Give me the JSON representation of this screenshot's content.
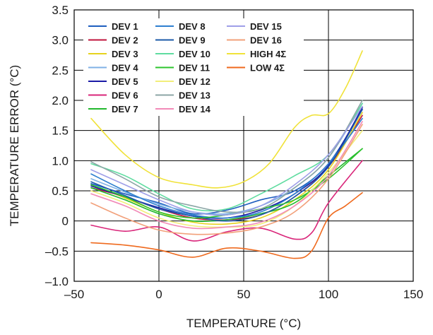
{
  "chart_data": {
    "type": "line",
    "title": "",
    "xlabel": "TEMPERATURE (°C)",
    "ylabel": "TEMPERATURE ERROR (°C)",
    "xlim": [
      -50,
      150
    ],
    "ylim": [
      -1.0,
      3.5
    ],
    "xticks": [
      -50,
      0,
      50,
      100,
      150
    ],
    "yticks": [
      -1.0,
      -0.5,
      0,
      0.5,
      1.0,
      1.5,
      2.0,
      2.5,
      3.0,
      3.5
    ],
    "xtick_labels": [
      "–50",
      "0",
      "50",
      "100",
      "150"
    ],
    "ytick_labels": [
      "–1.0",
      "–0.5",
      "0",
      "0.5",
      "1.0",
      "1.5",
      "2.0",
      "2.5",
      "3.0",
      "3.5"
    ],
    "grid": true,
    "legend": "top-left",
    "legend_columns": 3,
    "series": [
      {
        "name": "DEV 1",
        "color": "#1f5fbf",
        "x": [
          -40,
          -20,
          0,
          20,
          40,
          60,
          80,
          100,
          120
        ],
        "y": [
          0.62,
          0.45,
          0.3,
          0.12,
          0.18,
          0.35,
          0.5,
          0.95,
          1.85
        ]
      },
      {
        "name": "DEV 2",
        "color": "#c0143c",
        "x": [
          -40,
          -20,
          0,
          20,
          40,
          60,
          80,
          100,
          120
        ],
        "y": [
          0.55,
          0.4,
          0.2,
          0.05,
          0.02,
          0.1,
          0.4,
          0.9,
          1.75
        ]
      },
      {
        "name": "DEV 3",
        "color": "#e6d21e",
        "x": [
          -40,
          -20,
          0,
          20,
          40,
          60,
          80,
          100,
          120
        ],
        "y": [
          0.6,
          0.38,
          0.15,
          -0.02,
          -0.05,
          0.05,
          0.35,
          0.85,
          1.8
        ]
      },
      {
        "name": "DEV 4",
        "color": "#7fb2e5",
        "x": [
          -40,
          -20,
          0,
          20,
          40,
          60,
          80,
          100,
          120
        ],
        "y": [
          0.7,
          0.48,
          0.28,
          0.15,
          0.12,
          0.25,
          0.55,
          1.05,
          1.95
        ]
      },
      {
        "name": "DEV 5",
        "color": "#1a1aa6",
        "x": [
          -40,
          -20,
          0,
          20,
          40,
          60,
          80,
          100,
          120
        ],
        "y": [
          0.58,
          0.4,
          0.22,
          0.08,
          0.05,
          0.18,
          0.45,
          0.92,
          1.88
        ]
      },
      {
        "name": "DEV 6",
        "color": "#d9267a",
        "x": [
          -40,
          -20,
          0,
          20,
          40,
          60,
          80,
          90,
          100,
          120
        ],
        "y": [
          -0.07,
          -0.17,
          -0.1,
          -0.33,
          -0.18,
          -0.12,
          -0.3,
          -0.2,
          0.3,
          1.0
        ]
      },
      {
        "name": "DEV 7",
        "color": "#22b82e",
        "x": [
          -40,
          -20,
          0,
          20,
          40,
          60,
          80,
          100,
          120
        ],
        "y": [
          0.55,
          0.35,
          0.12,
          0.0,
          0.02,
          0.12,
          0.3,
          0.75,
          1.2
        ]
      },
      {
        "name": "DEV 8",
        "color": "#2e7fd0",
        "x": [
          -40,
          -20,
          0,
          20,
          40,
          60,
          80,
          100,
          120
        ],
        "y": [
          0.78,
          0.5,
          0.25,
          0.1,
          0.05,
          0.15,
          0.45,
          0.95,
          1.7
        ]
      },
      {
        "name": "DEV 9",
        "color": "#1c5aa8",
        "x": [
          -40,
          -20,
          0,
          20,
          40,
          60,
          80,
          100,
          120
        ],
        "y": [
          0.65,
          0.42,
          0.2,
          0.08,
          0.0,
          0.1,
          0.4,
          0.9,
          1.85
        ]
      },
      {
        "name": "DEV 10",
        "color": "#5fdca0",
        "x": [
          -40,
          -20,
          0,
          20,
          40,
          60,
          80,
          100,
          120
        ],
        "y": [
          0.95,
          0.75,
          0.45,
          0.2,
          0.2,
          0.45,
          0.75,
          1.1,
          1.95
        ]
      },
      {
        "name": "DEV 11",
        "color": "#2ec42e",
        "x": [
          -40,
          -20,
          0,
          20,
          40,
          60,
          80,
          100,
          120
        ],
        "y": [
          0.6,
          0.4,
          0.15,
          0.05,
          0.1,
          0.2,
          0.35,
          0.7,
          1.2
        ]
      },
      {
        "name": "DEV 12",
        "color": "#f2ee7a",
        "x": [
          -40,
          -20,
          0,
          20,
          40,
          60,
          80,
          100,
          120
        ],
        "y": [
          0.5,
          0.3,
          0.05,
          -0.08,
          -0.1,
          -0.05,
          0.25,
          0.8,
          1.5
        ]
      },
      {
        "name": "DEV 13",
        "color": "#8ca6a6",
        "x": [
          -40,
          -20,
          0,
          20,
          40,
          60,
          80,
          100,
          120
        ],
        "y": [
          0.98,
          0.7,
          0.4,
          0.25,
          0.15,
          0.2,
          0.55,
          1.05,
          2.0
        ]
      },
      {
        "name": "DEV 14",
        "color": "#f28ab8",
        "x": [
          -40,
          -20,
          0,
          20,
          40,
          60,
          80,
          100,
          120
        ],
        "y": [
          0.45,
          0.25,
          0.0,
          -0.12,
          -0.1,
          -0.02,
          0.25,
          0.75,
          1.65
        ]
      },
      {
        "name": "DEV 15",
        "color": "#9f9fe8",
        "x": [
          -40,
          -20,
          0,
          20,
          40,
          60,
          80,
          100,
          120
        ],
        "y": [
          0.85,
          0.6,
          0.35,
          0.15,
          0.1,
          0.25,
          0.6,
          1.1,
          1.9
        ]
      },
      {
        "name": "DEV 16",
        "color": "#f2a07a",
        "x": [
          -40,
          -20,
          0,
          20,
          40,
          60,
          80,
          100,
          120
        ],
        "y": [
          0.3,
          0.05,
          -0.15,
          -0.22,
          -0.2,
          -0.1,
          0.15,
          0.7,
          1.6
        ]
      },
      {
        "name": "HIGH 4Σ",
        "color": "#f0e238",
        "x": [
          -40,
          -20,
          0,
          20,
          35,
          50,
          65,
          80,
          90,
          100,
          110,
          120
        ],
        "y": [
          1.7,
          1.1,
          0.72,
          0.6,
          0.55,
          0.65,
          0.95,
          1.55,
          1.75,
          1.78,
          2.2,
          2.82
        ]
      },
      {
        "name": "LOW 4Σ",
        "color": "#ef6a1e",
        "x": [
          -40,
          -20,
          0,
          20,
          40,
          60,
          80,
          90,
          100,
          110,
          120
        ],
        "y": [
          -0.36,
          -0.4,
          -0.48,
          -0.6,
          -0.45,
          -0.5,
          -0.62,
          -0.5,
          0.05,
          0.25,
          0.47
        ]
      }
    ]
  }
}
